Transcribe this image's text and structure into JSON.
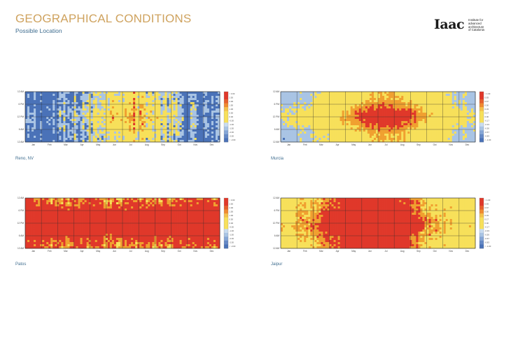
{
  "header": {
    "title": "GEOGRAPHICAL CONDITIONS",
    "subtitle": "Possible Location"
  },
  "logo": {
    "mark": "Iaac",
    "lines": [
      "Institute for",
      "advanced",
      "architecture",
      "of Catalonia"
    ]
  },
  "chart_data": [
    {
      "type": "heatmap",
      "title": "Reno, NV",
      "xlabel": "",
      "ylabel": "",
      "y_ticks": [
        "12 AM",
        "6 PM",
        "12 PM",
        "6 AM",
        "12 AM"
      ],
      "x_ticks": [
        "Jan",
        "Feb",
        "Mar",
        "Apr",
        "May",
        "Jun",
        "Jul",
        "Aug",
        "Sep",
        "Oct",
        "Nov",
        "Dec"
      ],
      "colorbar_ticks": [
        "> 3.00",
        "2.50",
        "2.00",
        "1.50",
        "1.00",
        "0.50",
        "0.00",
        "-0.50",
        "-1.00",
        "-1.50",
        "-2.00",
        "-2.50",
        "< -3.00"
      ],
      "colorscale": [
        "#4a72b8",
        "#a9c4e4",
        "#f7e05a",
        "#f0a030",
        "#e0382a"
      ],
      "grid": true,
      "profile": {
        "peak_day": 195,
        "season_width": 62,
        "amplitude": 1.05,
        "baseline": -0.85,
        "day_offset": 0.25,
        "noise": 0.55,
        "vertical_streaks": 0.6
      }
    },
    {
      "type": "heatmap",
      "title": "Murcia",
      "xlabel": "",
      "ylabel": "",
      "y_ticks": [
        "12 AM",
        "6 PM",
        "12 PM",
        "6 AM",
        "12 AM"
      ],
      "x_ticks": [
        "Jan",
        "Feb",
        "Mar",
        "Apr",
        "May",
        "Jun",
        "Jul",
        "Aug",
        "Sep",
        "Oct",
        "Nov",
        "Dec"
      ],
      "colorbar_ticks": [
        "> 1.00",
        "0.83",
        "0.67",
        "0.50",
        "0.33",
        "0.17",
        "0.00",
        "-0.17",
        "-0.33",
        "-0.50",
        "-0.67",
        "-0.83",
        "< -1.00"
      ],
      "colorscale": [
        "#4a72b8",
        "#a9c4e4",
        "#f7e05a",
        "#f0a030",
        "#e0382a"
      ],
      "grid": true,
      "profile": {
        "peak_day": 195,
        "season_width": 80,
        "amplitude": 0.95,
        "baseline": -0.45,
        "day_offset": 0.35,
        "noise": 0.22,
        "vertical_streaks": 0.15
      }
    },
    {
      "type": "heatmap",
      "title": "Patos",
      "xlabel": "",
      "ylabel": "",
      "y_ticks": [
        "12 AM",
        "6 PM",
        "12 PM",
        "6 AM",
        "12 AM"
      ],
      "x_ticks": [
        "Jan",
        "Feb",
        "Mar",
        "Apr",
        "May",
        "Jun",
        "Jul",
        "Aug",
        "Sep",
        "Oct",
        "Nov",
        "Dec"
      ],
      "colorbar_ticks": [
        "> 3.00",
        "2.50",
        "2.00",
        "1.50",
        "1.00",
        "0.50",
        "0.00",
        "-0.50",
        "-1.00",
        "-1.50",
        "-2.00",
        "-2.50",
        "< -3.00"
      ],
      "colorscale": [
        "#4a72b8",
        "#a9c4e4",
        "#f7e05a",
        "#f0a030",
        "#e0382a"
      ],
      "grid": true,
      "profile": {
        "peak_day": 320,
        "season_width": 220,
        "amplitude": 0.35,
        "baseline": 0.45,
        "day_offset": 0.75,
        "noise": 0.45,
        "vertical_streaks": 0.35
      }
    },
    {
      "type": "heatmap",
      "title": "Jaipur",
      "xlabel": "",
      "ylabel": "",
      "y_ticks": [
        "12 AM",
        "6 PM",
        "12 PM",
        "6 AM",
        "12 AM"
      ],
      "x_ticks": [
        "Jan",
        "Feb",
        "Mar",
        "Apr",
        "May",
        "Jun",
        "Jul",
        "Aug",
        "Sep",
        "Oct",
        "Nov",
        "Dec"
      ],
      "colorbar_ticks": [
        "> 1.00",
        "0.83",
        "0.67",
        "0.50",
        "0.33",
        "0.17",
        "0.00",
        "-0.17",
        "-0.33",
        "-0.50",
        "-0.67",
        "-0.83",
        "< -1.00"
      ],
      "colorscale": [
        "#4a72b8",
        "#a9c4e4",
        "#f7e05a",
        "#f0a030",
        "#e0382a"
      ],
      "grid": true,
      "profile": {
        "peak_day": 170,
        "season_width": 75,
        "amplitude": 1.25,
        "baseline": 0.05,
        "day_offset": 0.3,
        "noise": 0.35,
        "vertical_streaks": 0.3
      }
    }
  ]
}
